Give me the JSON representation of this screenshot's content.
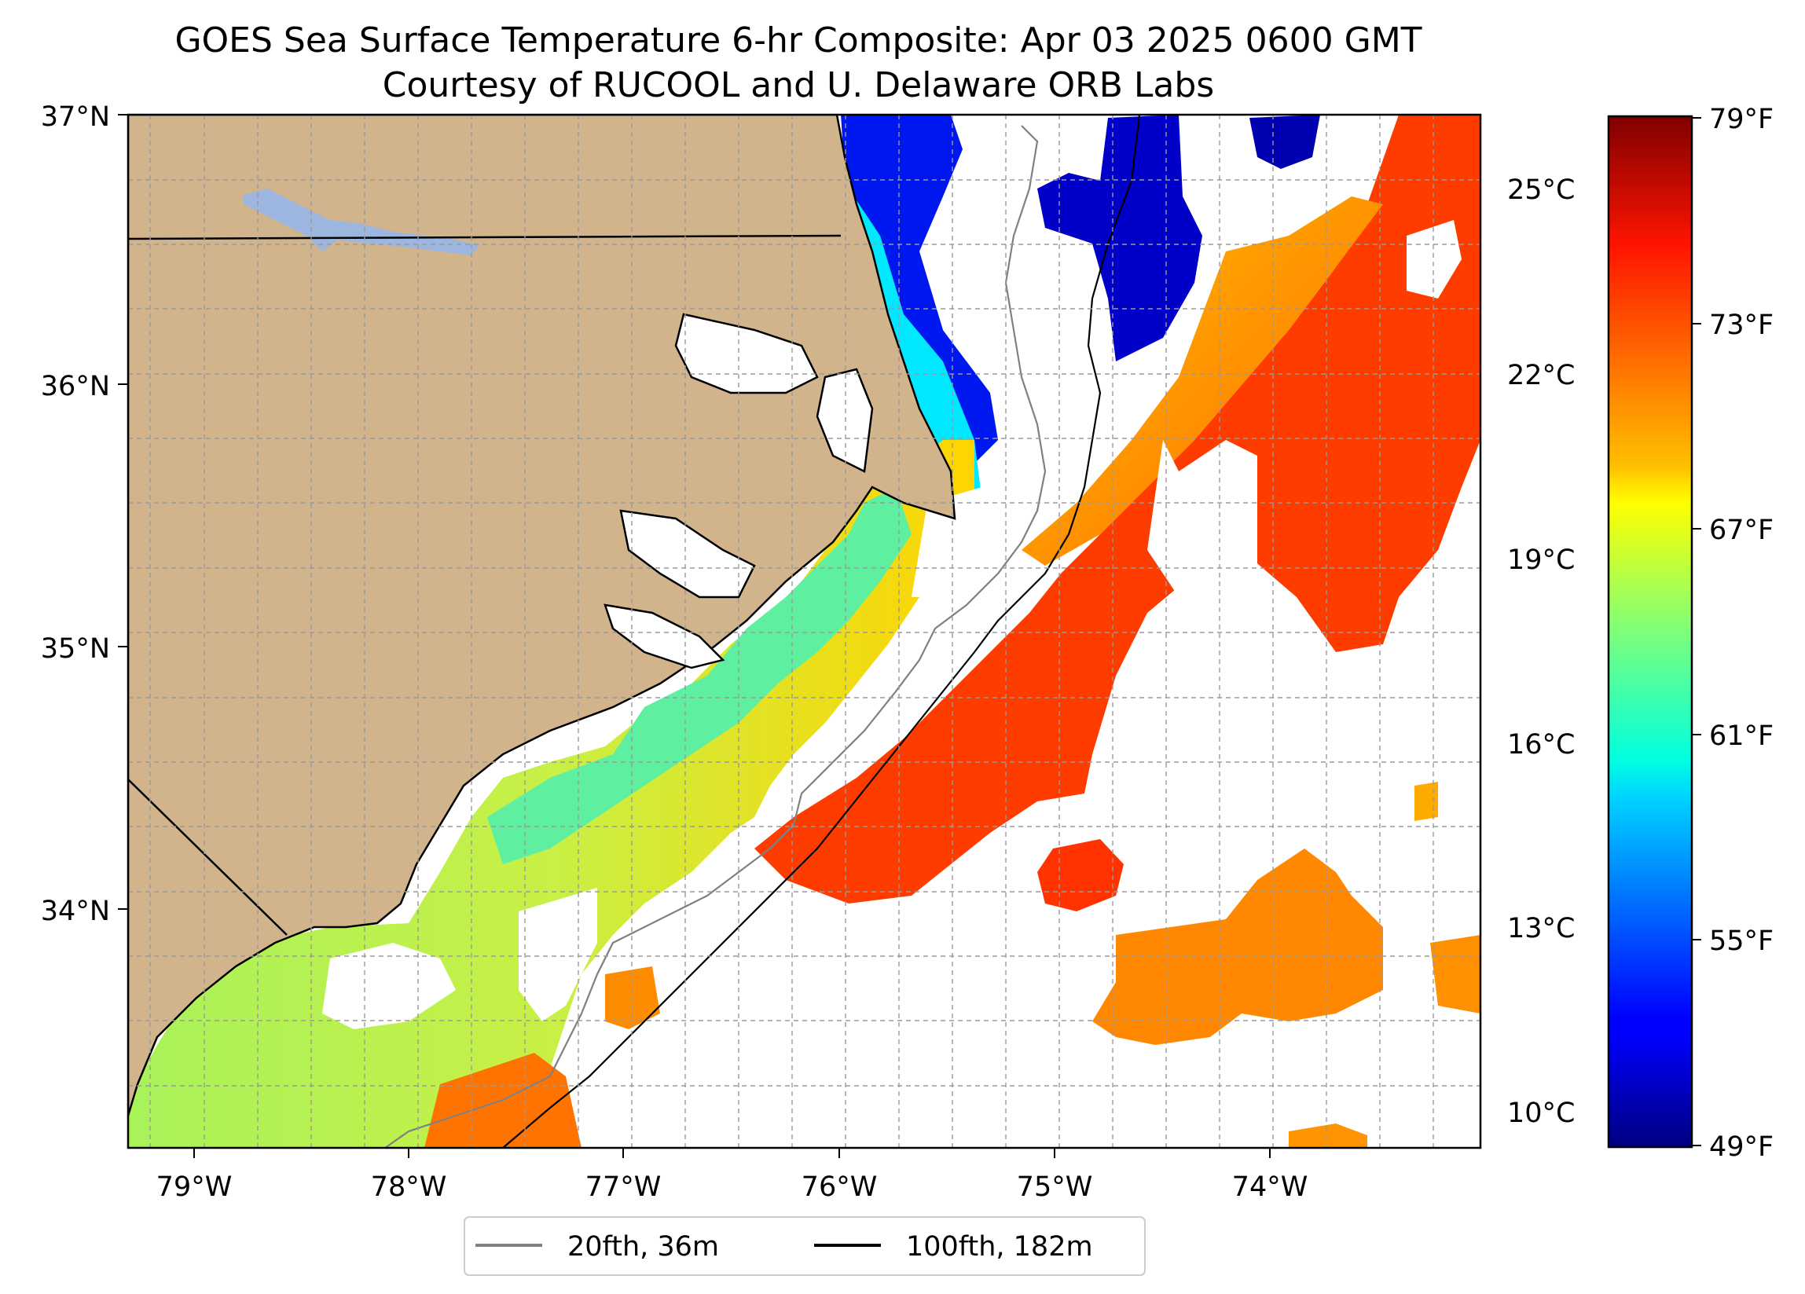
{
  "title": {
    "line1": "GOES Sea Surface Temperature 6-hr Composite: Apr 03 2025 0600 GMT",
    "line2": "Courtesy of RUCOOL and U. Delaware ORB Labs"
  },
  "map": {
    "lon_range": [
      -79.3,
      -73.15
    ],
    "lat_range": [
      33.1,
      37.0
    ],
    "lon_ticks": [
      "79°W",
      "78°W",
      "77°W",
      "76°W",
      "75°W",
      "74°W"
    ],
    "lat_ticks": [
      "37°N",
      "36°N",
      "35°N",
      "34°N"
    ],
    "gridlines": "on, dashed, every 0.25°",
    "colors": {
      "land": "#d1b48c",
      "water_body": "#9db6df",
      "no_data": "#ffffff",
      "isobath_20fth": "#808080",
      "isobath_100fth": "#000000"
    }
  },
  "celsius_axis": {
    "ticks": [
      "25°C",
      "22°C",
      "19°C",
      "16°C",
      "13°C",
      "10°C"
    ],
    "values": [
      25,
      22,
      19,
      16,
      13,
      10
    ]
  },
  "colorbar": {
    "colormap": "jet",
    "range_f": [
      49,
      79
    ],
    "ticks": [
      "79°F",
      "73°F",
      "67°F",
      "61°F",
      "55°F",
      "49°F"
    ],
    "values": [
      79,
      73,
      67,
      61,
      55,
      49
    ]
  },
  "legend": {
    "placement": "below map, centered",
    "items": [
      {
        "label": "20fth, 36m",
        "color": "#808080"
      },
      {
        "label": "100fth, 182m",
        "color": "#000000"
      }
    ]
  }
}
